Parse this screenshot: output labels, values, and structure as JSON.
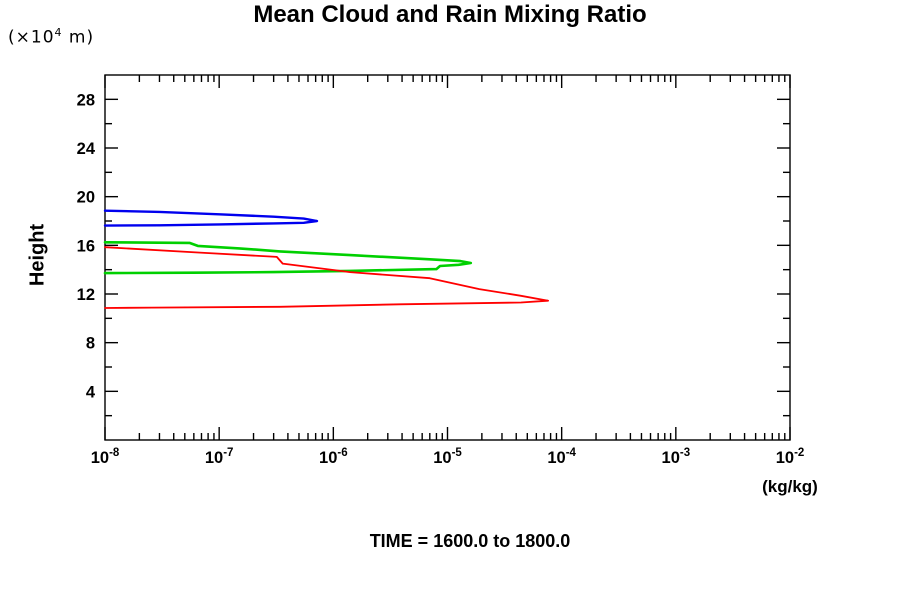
{
  "chart_data": {
    "type": "line",
    "title": "Mean Cloud and Rain Mixing Ratio",
    "ylabel": "Height",
    "y_axis_unit": {
      "prefix": "(×10",
      "exp": "4",
      "suffix": " m)"
    },
    "x_axis_unit": "(kg/kg)",
    "caption": "TIME = 1600.0 to 1800.0",
    "x_scale": "log",
    "xlim_exponents": [
      -8,
      -2
    ],
    "x_tick_labels": [
      {
        "base": "10",
        "exp": "-8"
      },
      {
        "base": "10",
        "exp": "-7"
      },
      {
        "base": "10",
        "exp": "-6"
      },
      {
        "base": "10",
        "exp": "-5"
      },
      {
        "base": "10",
        "exp": "-4"
      },
      {
        "base": "10",
        "exp": "-3"
      },
      {
        "base": "10",
        "exp": "-2"
      }
    ],
    "ylim": [
      0,
      30
    ],
    "y_major_ticks": [
      4,
      8,
      12,
      16,
      20,
      24,
      28
    ],
    "y_minor_ticks": [
      2,
      6,
      10,
      14,
      18,
      22,
      26
    ],
    "grid": false,
    "legend": false,
    "frame_color": "#000000",
    "series": [
      {
        "name": "blue-profile",
        "color": "#0000ee",
        "points": [
          [
            1e-08,
            18.85
          ],
          [
            3e-08,
            18.75
          ],
          [
            1e-07,
            18.55
          ],
          [
            3e-07,
            18.35
          ],
          [
            5.5e-07,
            18.2
          ],
          [
            7.2e-07,
            18.0
          ],
          [
            5.5e-07,
            17.85
          ],
          [
            3e-07,
            17.8
          ],
          [
            1e-07,
            17.72
          ],
          [
            3e-08,
            17.65
          ],
          [
            1e-08,
            17.62
          ]
        ]
      },
      {
        "name": "green-profile",
        "color": "#00d000",
        "points": [
          [
            1e-08,
            16.25
          ],
          [
            5.5e-08,
            16.2
          ],
          [
            6.5e-08,
            15.95
          ],
          [
            1.5e-07,
            15.75
          ],
          [
            3.4e-07,
            15.5
          ],
          [
            1.4e-06,
            15.2
          ],
          [
            7e-06,
            14.85
          ],
          [
            1.3e-05,
            14.7
          ],
          [
            1.6e-05,
            14.55
          ],
          [
            1.25e-05,
            14.4
          ],
          [
            8.6e-06,
            14.3
          ],
          [
            8e-06,
            14.05
          ],
          [
            1.4e-06,
            13.9
          ],
          [
            3e-07,
            13.8
          ],
          [
            6e-08,
            13.75
          ],
          [
            1e-08,
            13.72
          ]
        ]
      },
      {
        "name": "red-profile",
        "color": "#ff0000",
        "points": [
          [
            1e-08,
            15.85
          ],
          [
            6.8e-08,
            15.4
          ],
          [
            3.2e-07,
            15.05
          ],
          [
            3.6e-07,
            14.5
          ],
          [
            1.4e-06,
            13.8
          ],
          [
            7e-06,
            13.3
          ],
          [
            1.9e-05,
            12.4
          ],
          [
            4.4e-05,
            11.85
          ],
          [
            7.6e-05,
            11.45
          ],
          [
            4.4e-05,
            11.3
          ],
          [
            3.8e-06,
            11.15
          ],
          [
            3.4e-07,
            10.95
          ],
          [
            2.6e-08,
            10.88
          ],
          [
            1e-08,
            10.85
          ]
        ]
      }
    ]
  }
}
